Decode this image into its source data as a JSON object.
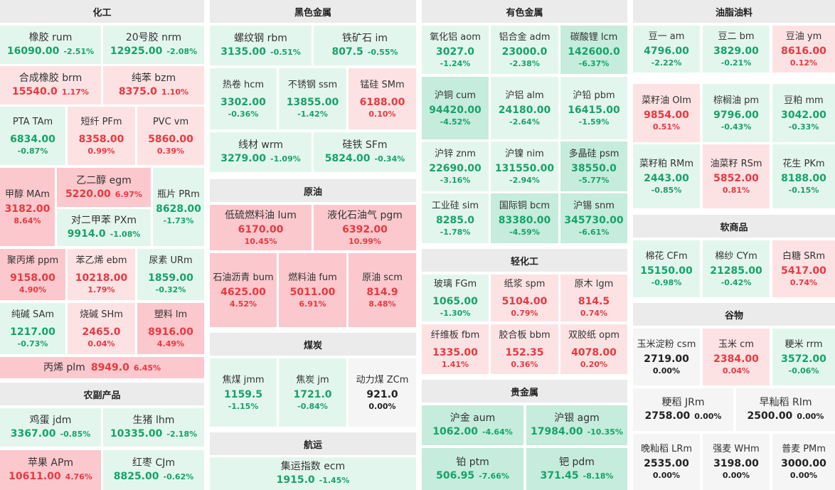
{
  "sections": [
    {
      "id": "chem",
      "title": "化工",
      "items": [
        {
          "name": "橡胶  rum",
          "price": "16090.00",
          "pct": "-2.51%",
          "dir": "dn"
        },
        {
          "name": "20号胶  nrm",
          "price": "12925.00",
          "pct": "-2.08%",
          "dir": "dn"
        },
        {
          "name": "合成橡胶  brm",
          "price": "15540.0",
          "pct": "1.17%",
          "dir": "up"
        },
        {
          "name": "纯苯  bzm",
          "price": "8375.0",
          "pct": "1.10%",
          "dir": "up"
        },
        {
          "name": "PTA  TAm",
          "price": "6834.00",
          "pct": "-0.87%",
          "dir": "dn"
        },
        {
          "name": "短纤  PFm",
          "price": "8358.00",
          "pct": "0.99%",
          "dir": "up"
        },
        {
          "name": "PVC  vm",
          "price": "5860.00",
          "pct": "0.39%",
          "dir": "up"
        },
        {
          "name": "甲醇 MAm",
          "price": "3182.00",
          "pct": "8.64%",
          "dir": "up"
        },
        {
          "name": "乙二醇  egm",
          "price": "5220.00",
          "pct": "6.97%",
          "dir": "up"
        },
        {
          "name": "瓶片 PRm",
          "price": "8628.00",
          "pct": "-1.73%",
          "dir": "dn"
        },
        {
          "name": "对二甲苯  PXm",
          "price": "9914.0",
          "pct": "-1.08%",
          "dir": "dn"
        },
        {
          "name": "聚丙烯  ppm",
          "price": "9158.00",
          "pct": "4.90%",
          "dir": "up"
        },
        {
          "name": "苯乙烯  ebm",
          "price": "10218.00",
          "pct": "1.79%",
          "dir": "up"
        },
        {
          "name": "尿素  URm",
          "price": "1859.00",
          "pct": "-0.32%",
          "dir": "dn"
        },
        {
          "name": "纯碱  SAm",
          "price": "1217.00",
          "pct": "-0.73%",
          "dir": "dn"
        },
        {
          "name": "烧碱  SHm",
          "price": "2465.0",
          "pct": "0.04%",
          "dir": "up"
        },
        {
          "name": "塑料  lm",
          "price": "8916.00",
          "pct": "4.49%",
          "dir": "up"
        },
        {
          "name": "丙烯  plm",
          "price": "8949.0",
          "pct": "6.45%",
          "dir": "up"
        }
      ]
    },
    {
      "id": "agri",
      "title": "农副产品",
      "items": [
        {
          "name": "鸡蛋  jdm",
          "price": "3367.00",
          "pct": "-0.85%",
          "dir": "dn"
        },
        {
          "name": "生猪  lhm",
          "price": "10335.00",
          "pct": "-2.18%",
          "dir": "dn"
        },
        {
          "name": "苹果  APm",
          "price": "10611.00",
          "pct": "4.76%",
          "dir": "up"
        },
        {
          "name": "红枣  CJm",
          "price": "8825.00",
          "pct": "-0.62%",
          "dir": "dn"
        }
      ]
    },
    {
      "id": "ferrous",
      "title": "黑色金属",
      "items": [
        {
          "name": "螺纹钢  rbm",
          "price": "3135.00",
          "pct": "-0.51%",
          "dir": "dn"
        },
        {
          "name": "铁矿石  im",
          "price": "807.5",
          "pct": "-0.55%",
          "dir": "dn"
        },
        {
          "name": "热卷  hcm",
          "price": "3302.00",
          "pct": "-0.36%",
          "dir": "dn"
        },
        {
          "name": "不锈钢  ssm",
          "price": "13855.00",
          "pct": "-1.42%",
          "dir": "dn"
        },
        {
          "name": "锰硅  SMm",
          "price": "6188.00",
          "pct": "0.10%",
          "dir": "up"
        },
        {
          "name": "线材  wrm",
          "price": "3279.00",
          "pct": "-1.09%",
          "dir": "dn"
        },
        {
          "name": "硅铁  SFm",
          "price": "5824.00",
          "pct": "-0.34%",
          "dir": "dn"
        }
      ]
    },
    {
      "id": "oil",
      "title": "原油",
      "items": [
        {
          "name": "低硫燃料油  lum",
          "price": "6170.00",
          "pct": "10.45%",
          "dir": "up"
        },
        {
          "name": "液化石油气  pgm",
          "price": "6392.00",
          "pct": "10.99%",
          "dir": "up"
        },
        {
          "name": "石油沥青 bum",
          "price": "4625.00",
          "pct": "4.52%",
          "dir": "up"
        },
        {
          "name": "燃料油 fum",
          "price": "5011.00",
          "pct": "6.91%",
          "dir": "up"
        },
        {
          "name": "原油 scm",
          "price": "814.9",
          "pct": "8.48%",
          "dir": "up"
        }
      ]
    },
    {
      "id": "coal",
      "title": "煤炭",
      "items": [
        {
          "name": "焦煤 jmm",
          "price": "1159.5",
          "pct": "-1.15%",
          "dir": "dn"
        },
        {
          "name": "焦炭 jm",
          "price": "1721.0",
          "pct": "-0.84%",
          "dir": "dn"
        },
        {
          "name": "动力煤 ZCm",
          "price": "921.0",
          "pct": "0.00%",
          "dir": "flat"
        }
      ]
    },
    {
      "id": "ship",
      "title": "航运",
      "items": [
        {
          "name": "集运指数  ecm",
          "price": "1915.0",
          "pct": "-1.45%",
          "dir": "dn"
        }
      ]
    },
    {
      "id": "nonferrous",
      "title": "有色金属",
      "items": [
        {
          "name": "氧化铝  aom",
          "price": "3027.0",
          "pct": "-1.24%",
          "dir": "dn"
        },
        {
          "name": "铝合金  adm",
          "price": "23000.0",
          "pct": "-2.38%",
          "dir": "dn"
        },
        {
          "name": "碳酸锂  lcm",
          "price": "142600.0",
          "pct": "-6.37%",
          "dir": "dn"
        },
        {
          "name": "沪铜  cum",
          "price": "94420.00",
          "pct": "-4.52%",
          "dir": "dn"
        },
        {
          "name": "沪铝  alm",
          "price": "24180.00",
          "pct": "-2.64%",
          "dir": "dn"
        },
        {
          "name": "沪铅  pbm",
          "price": "16415.00",
          "pct": "-1.59%",
          "dir": "dn"
        },
        {
          "name": "沪锌  znm",
          "price": "22690.00",
          "pct": "-3.16%",
          "dir": "dn"
        },
        {
          "name": "沪镍  nim",
          "price": "131550.00",
          "pct": "-2.94%",
          "dir": "dn"
        },
        {
          "name": "多晶硅  psm",
          "price": "38550.0",
          "pct": "-5.77%",
          "dir": "dn"
        },
        {
          "name": "工业硅  sim",
          "price": "8285.0",
          "pct": "-1.78%",
          "dir": "dn"
        },
        {
          "name": "国际铜  bcm",
          "price": "83380.00",
          "pct": "-4.59%",
          "dir": "dn"
        },
        {
          "name": "沪锡  snm",
          "price": "345730.00",
          "pct": "-6.61%",
          "dir": "dn"
        }
      ]
    },
    {
      "id": "light",
      "title": "轻化工",
      "items": [
        {
          "name": "玻璃  FGm",
          "price": "1065.00",
          "pct": "-1.30%",
          "dir": "dn"
        },
        {
          "name": "纸浆  spm",
          "price": "5104.00",
          "pct": "0.79%",
          "dir": "up"
        },
        {
          "name": "原木  lgm",
          "price": "814.5",
          "pct": "0.74%",
          "dir": "up"
        },
        {
          "name": "纤维板  fbm",
          "price": "1335.00",
          "pct": "1.41%",
          "dir": "up"
        },
        {
          "name": "胶合板  bbm",
          "price": "152.35",
          "pct": "0.36%",
          "dir": "up"
        },
        {
          "name": "双胶纸  opm",
          "price": "4078.00",
          "pct": "0.20%",
          "dir": "up"
        }
      ]
    },
    {
      "id": "precious",
      "title": "贵金属",
      "items": [
        {
          "name": "沪金  aum",
          "price": "1062.00",
          "pct": "-4.64%",
          "dir": "dn"
        },
        {
          "name": "沪银  agm",
          "price": "17984.00",
          "pct": "-10.35%",
          "dir": "dn"
        },
        {
          "name": "铂  ptm",
          "price": "506.95",
          "pct": "-7.66%",
          "dir": "dn"
        },
        {
          "name": "钯  pdm",
          "price": "371.45",
          "pct": "-8.18%",
          "dir": "dn"
        }
      ]
    },
    {
      "id": "oils",
      "title": "油脂油料",
      "items": [
        {
          "name": "豆一  am",
          "price": "4796.00",
          "pct": "-2.22%",
          "dir": "dn"
        },
        {
          "name": "豆二  bm",
          "price": "3829.00",
          "pct": "-0.21%",
          "dir": "dn"
        },
        {
          "name": "豆油  ym",
          "price": "8616.00",
          "pct": "0.12%",
          "dir": "up"
        },
        {
          "name": "菜籽油  OIm",
          "price": "9854.00",
          "pct": "0.51%",
          "dir": "up"
        },
        {
          "name": "棕榈油  pm",
          "price": "9796.00",
          "pct": "-0.43%",
          "dir": "dn"
        },
        {
          "name": "豆粕  mm",
          "price": "3042.00",
          "pct": "-0.33%",
          "dir": "dn"
        },
        {
          "name": "菜籽粕  RMm",
          "price": "2443.00",
          "pct": "-0.85%",
          "dir": "dn"
        },
        {
          "name": "油菜籽  RSm",
          "price": "5852.00",
          "pct": "0.81%",
          "dir": "up"
        },
        {
          "name": "花生  PKm",
          "price": "8188.00",
          "pct": "-0.15%",
          "dir": "dn"
        }
      ]
    },
    {
      "id": "soft",
      "title": "软商品",
      "items": [
        {
          "name": "棉花  CFm",
          "price": "15150.00",
          "pct": "-0.98%",
          "dir": "dn"
        },
        {
          "name": "棉纱  CYm",
          "price": "21285.00",
          "pct": "-0.42%",
          "dir": "dn"
        },
        {
          "name": "白糖  SRm",
          "price": "5417.00",
          "pct": "0.74%",
          "dir": "up"
        }
      ]
    },
    {
      "id": "grain",
      "title": "谷物",
      "items": [
        {
          "name": "玉米淀粉  csm",
          "price": "2719.00",
          "pct": "0.00%",
          "dir": "flat"
        },
        {
          "name": "玉米  cm",
          "price": "2384.00",
          "pct": "0.04%",
          "dir": "up"
        },
        {
          "name": "粳米  rrm",
          "price": "3572.00",
          "pct": "-0.06%",
          "dir": "dn"
        },
        {
          "name": "粳稻  JRm",
          "price": "2758.00",
          "pct": "0.00%",
          "dir": "flat"
        },
        {
          "name": "早籼稻  RIm",
          "price": "2500.00",
          "pct": "0.00%",
          "dir": "flat"
        },
        {
          "name": "晚籼稻  LRm",
          "price": "2535.00",
          "pct": "0.00%",
          "dir": "flat"
        },
        {
          "name": "强麦  WHm",
          "price": "3198.00",
          "pct": "0.00%",
          "dir": "flat"
        },
        {
          "name": "普麦  PMm",
          "price": "3000.00",
          "pct": "0.00%",
          "dir": "flat"
        }
      ]
    }
  ]
}
